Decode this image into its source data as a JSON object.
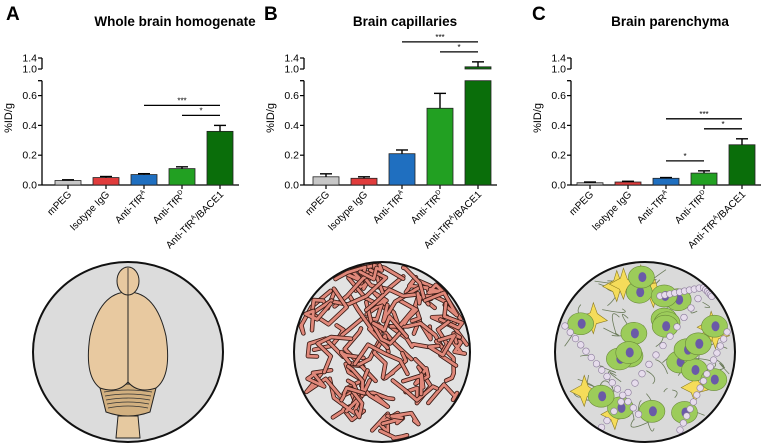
{
  "panels": [
    {
      "letter": "A",
      "title": "Whole brain homogenate",
      "illustration": "whole-brain"
    },
    {
      "letter": "B",
      "title": "Brain capillaries",
      "illustration": "capillaries"
    },
    {
      "letter": "C",
      "title": "Brain parenchyma",
      "illustration": "parenchyma"
    }
  ],
  "chart_data": [
    {
      "type": "bar",
      "title": "Whole brain homogenate",
      "ylabel": "%ID/g",
      "categories": [
        "mPEG",
        "Isotype IgG",
        "Anti-TfR^A",
        "Anti-TfR^D",
        "Anti-TfR^A/BACE1"
      ],
      "values": [
        0.03,
        0.05,
        0.07,
        0.11,
        0.36
      ],
      "errors": [
        0.005,
        0.007,
        0.006,
        0.012,
        0.04
      ],
      "yticks": [
        0.0,
        0.2,
        0.4,
        0.6,
        1.0,
        1.4
      ],
      "ylim": [
        0,
        1.4
      ],
      "axis_break": [
        0.7,
        1.0
      ],
      "significance": [
        {
          "from": 2,
          "to": 4,
          "label": "***"
        },
        {
          "from": 3,
          "to": 4,
          "label": "*"
        }
      ]
    },
    {
      "type": "bar",
      "title": "Brain capillaries",
      "ylabel": "%ID/g",
      "categories": [
        "mPEG",
        "Isotype IgG",
        "Anti-TfR^A",
        "Anti-TfR^D",
        "Anti-TfR^A/BACE1"
      ],
      "values": [
        0.055,
        0.045,
        0.21,
        0.515,
        1.08
      ],
      "errors": [
        0.02,
        0.01,
        0.025,
        0.1,
        0.18
      ],
      "yticks": [
        0.0,
        0.2,
        0.4,
        0.6,
        1.0,
        1.4
      ],
      "ylim": [
        0,
        1.4
      ],
      "axis_break": [
        0.7,
        1.0
      ],
      "significance": [
        {
          "from": 2,
          "to": 4,
          "label": "***"
        },
        {
          "from": 3,
          "to": 4,
          "label": "*"
        }
      ]
    },
    {
      "type": "bar",
      "title": "Brain parenchyma",
      "ylabel": "%ID/g",
      "categories": [
        "mPEG",
        "Isotype IgG",
        "Anti-TfR^A",
        "Anti-TfR^D",
        "Anti-TfR^A/BACE1"
      ],
      "values": [
        0.015,
        0.02,
        0.045,
        0.08,
        0.27
      ],
      "errors": [
        0.005,
        0.005,
        0.005,
        0.015,
        0.04
      ],
      "yticks": [
        0.0,
        0.2,
        0.4,
        0.6,
        1.0,
        1.4
      ],
      "ylim": [
        0,
        1.4
      ],
      "axis_break": [
        0.7,
        1.0
      ],
      "significance": [
        {
          "from": 2,
          "to": 3,
          "label": "*"
        },
        {
          "from": 2,
          "to": 4,
          "label": "***"
        },
        {
          "from": 3,
          "to": 4,
          "label": "*"
        }
      ]
    }
  ],
  "colors": {
    "bars": [
      "#c8c8c8",
      "#e03c3c",
      "#1f6fc0",
      "#22a022",
      "#0a6e0a"
    ]
  }
}
